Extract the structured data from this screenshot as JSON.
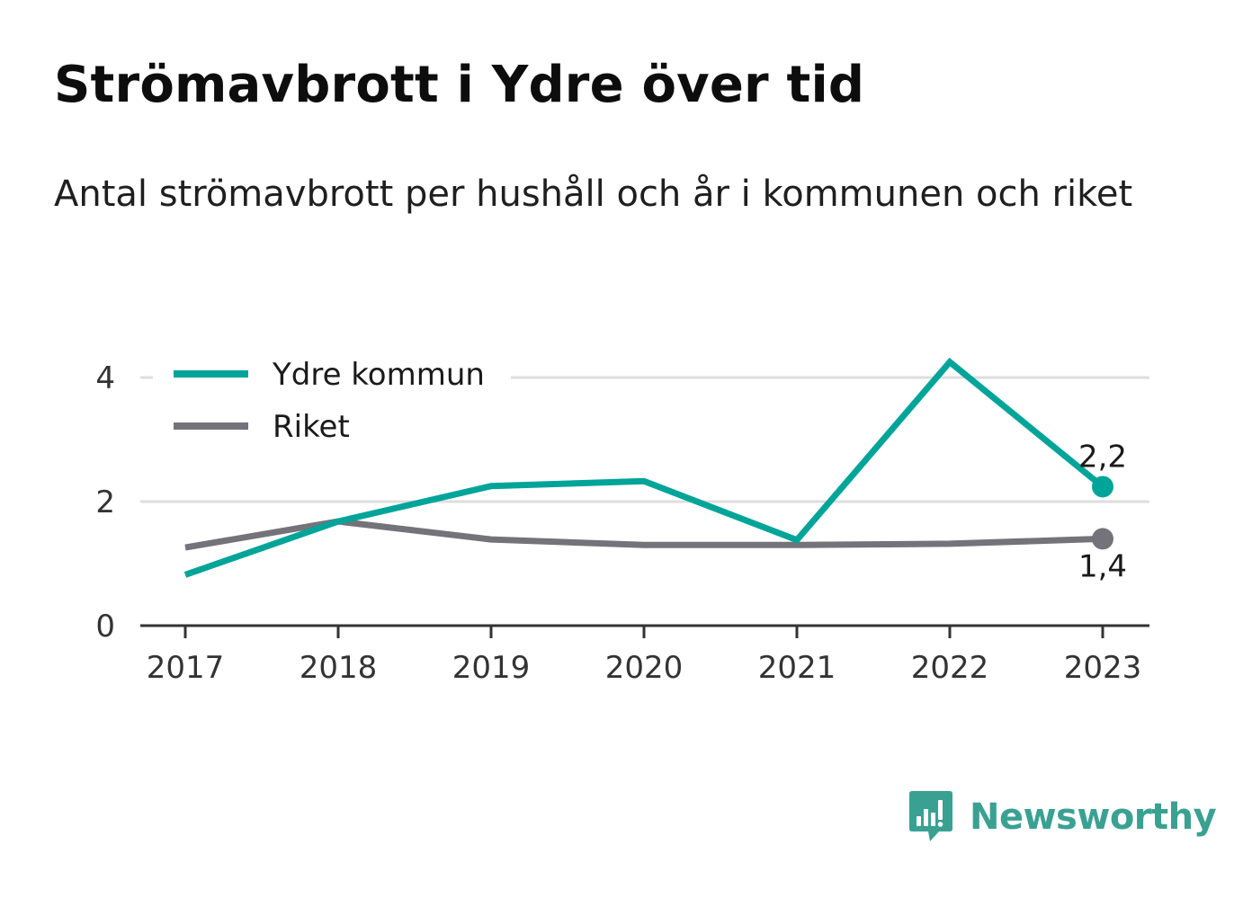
{
  "title": "Strömavbrott i Ydre över tid",
  "subtitle": "Antal strömavbrott per hushåll och år i kommunen och riket",
  "brand": {
    "name": "Newsworthy",
    "color": "#3aa192",
    "icon": "newsworthy-logo-icon"
  },
  "chart_data": {
    "type": "line",
    "x": [
      "2017",
      "2018",
      "2019",
      "2020",
      "2021",
      "2022",
      "2023"
    ],
    "ylim": [
      0,
      4.4
    ],
    "yticks": [
      {
        "value": 0,
        "label": "0"
      },
      {
        "value": 2,
        "label": "2"
      },
      {
        "value": 4,
        "label": "4"
      }
    ],
    "grid": true,
    "legend_position": "top-left",
    "series": [
      {
        "name": "Ydre kommun",
        "color": "#00a499",
        "values": [
          0.82,
          1.68,
          2.25,
          2.33,
          1.38,
          4.25,
          2.24
        ],
        "end_label": "2,2",
        "end_label_position": "above"
      },
      {
        "name": "Riket",
        "color": "#74737a",
        "values": [
          1.26,
          1.68,
          1.39,
          1.3,
          1.3,
          1.32,
          1.4
        ],
        "end_label": "1,4",
        "end_label_position": "below"
      }
    ]
  }
}
